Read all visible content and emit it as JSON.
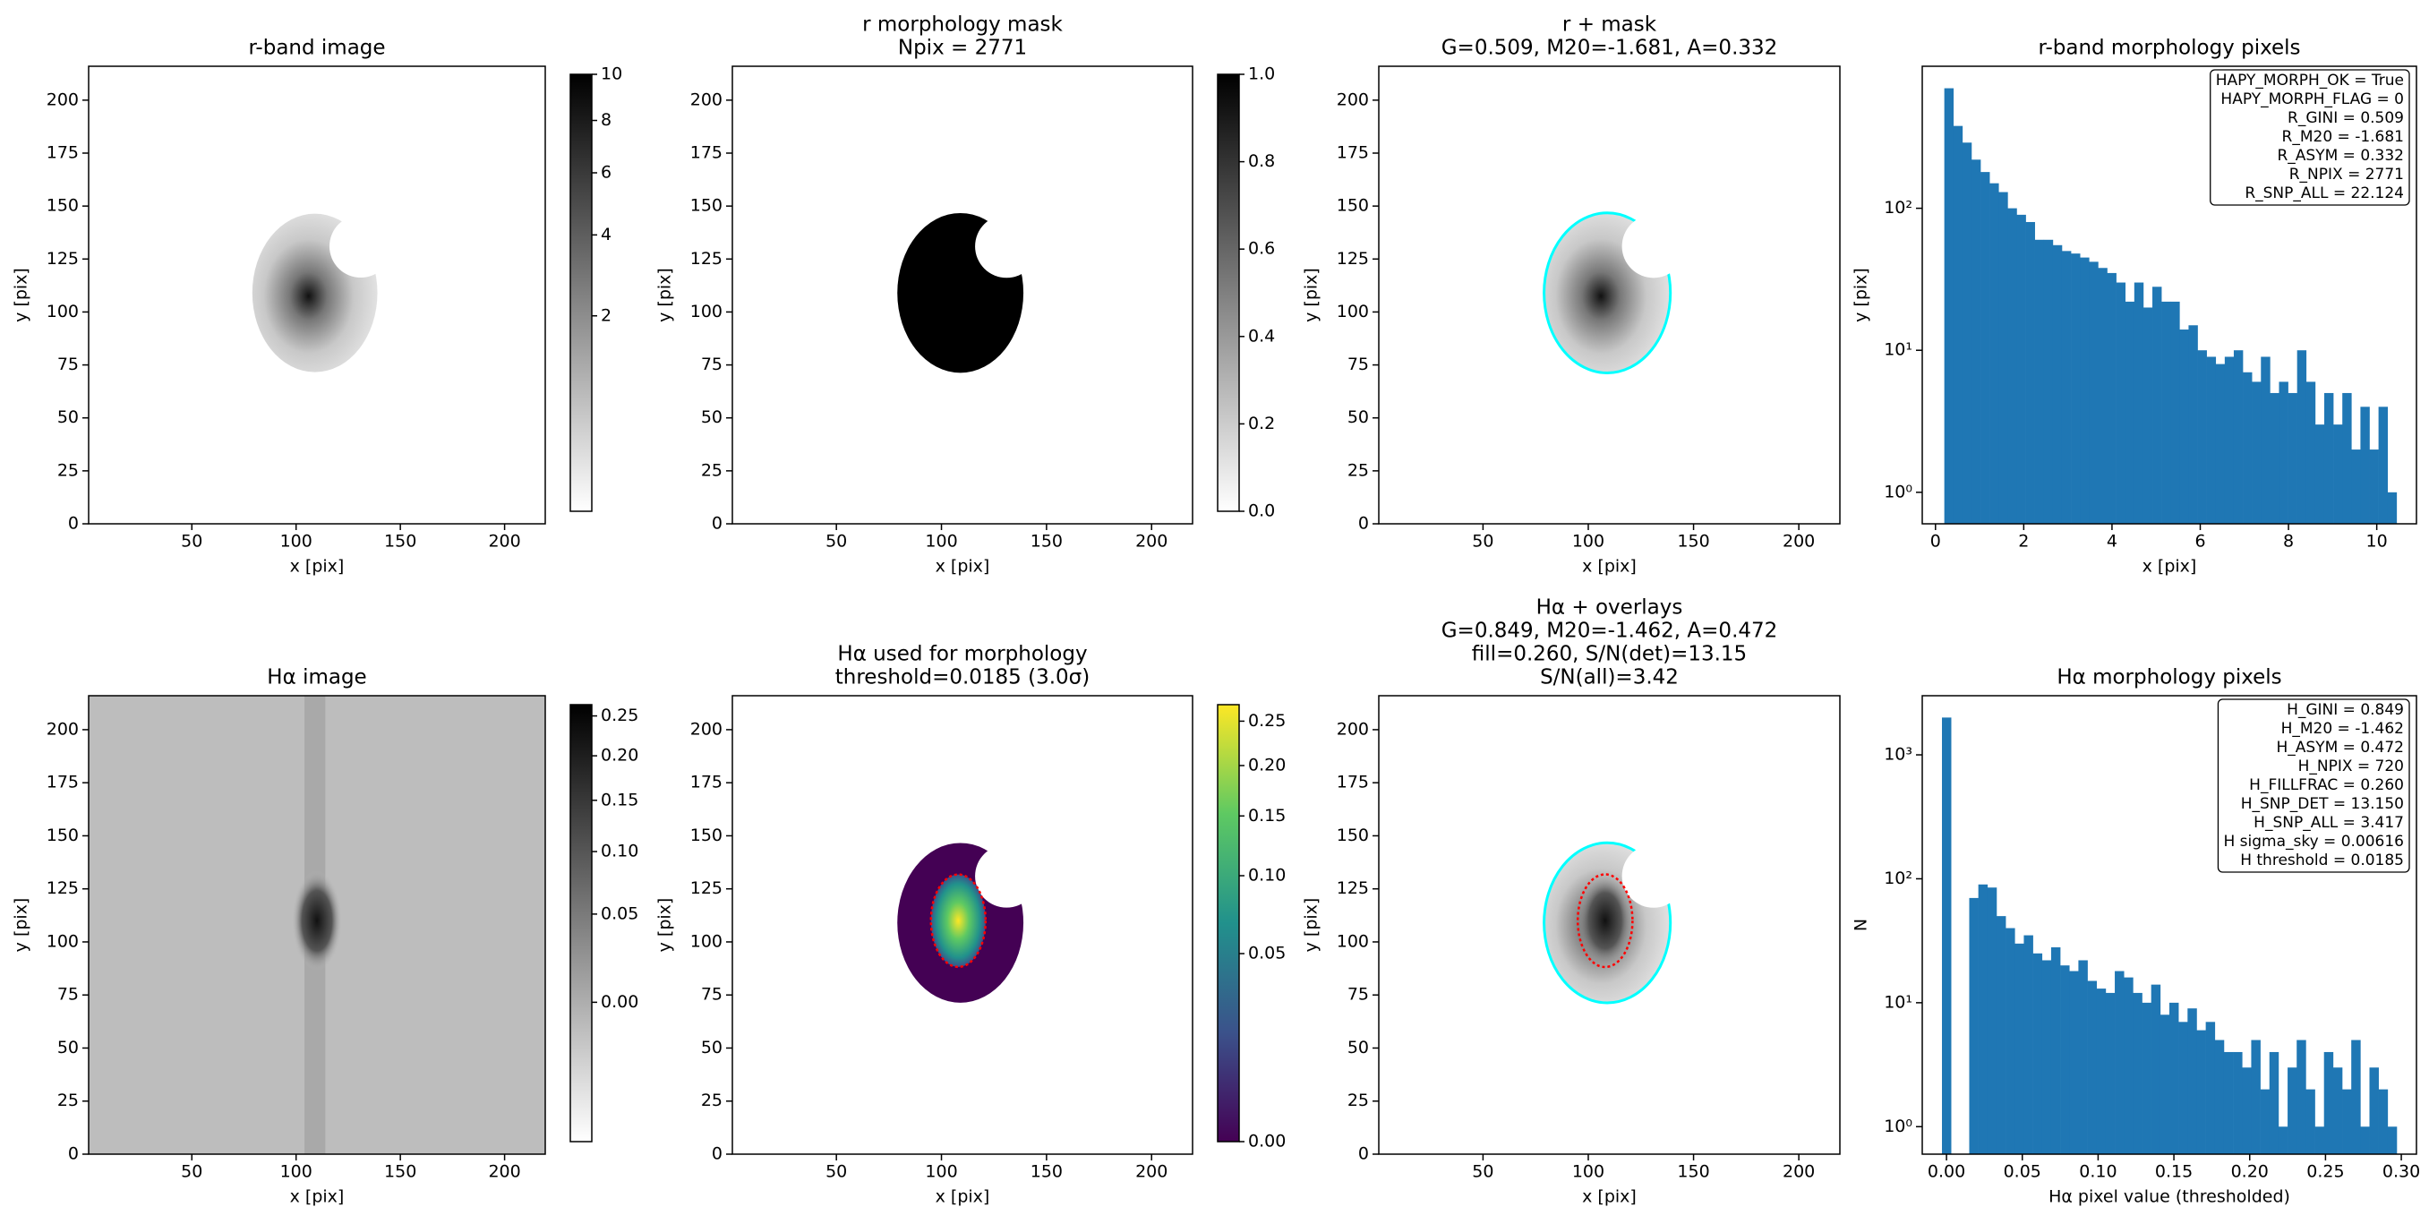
{
  "chart_data": [
    {
      "type": "image",
      "title": [
        "r-band image"
      ],
      "xlabel": "x [pix]",
      "ylabel": "y [pix]",
      "xlim": [
        0.5,
        219.5
      ],
      "ylim": [
        0,
        216
      ],
      "xticks": [
        50,
        100,
        150,
        200
      ],
      "yticks": [
        0,
        25,
        50,
        75,
        100,
        125,
        150,
        175,
        200
      ],
      "cmap": "gray_r",
      "colorbar": {
        "lim": [
          0,
          10
        ],
        "scale": "sqrt",
        "ticks": [
          2,
          4,
          6,
          8,
          10
        ]
      }
    },
    {
      "type": "image",
      "title": [
        "r morphology mask",
        "Npix = 2771"
      ],
      "xlabel": "x [pix]",
      "ylabel": "y [pix]",
      "xlim": [
        0.5,
        219.5
      ],
      "ylim": [
        0,
        216
      ],
      "xticks": [
        50,
        100,
        150,
        200
      ],
      "yticks": [
        0,
        25,
        50,
        75,
        100,
        125,
        150,
        175,
        200
      ],
      "cmap": "gray_r",
      "colorbar": {
        "lim": [
          0,
          1
        ],
        "scale": "linear",
        "ticks": [
          {
            "value": 0,
            "label": "0.0"
          },
          0.2,
          0.4,
          0.6,
          0.8,
          {
            "value": 1,
            "label": "1.0"
          }
        ]
      }
    },
    {
      "type": "image",
      "title": [
        "r + mask",
        "G=0.509, M20=-1.681, A=0.332"
      ],
      "xlabel": "x [pix]",
      "ylabel": "y [pix]",
      "xlim": [
        0.5,
        219.5
      ],
      "ylim": [
        0,
        216
      ],
      "xticks": [
        50,
        100,
        150,
        200
      ],
      "yticks": [
        0,
        25,
        50,
        75,
        100,
        125,
        150,
        175,
        200
      ],
      "cmap": "gray_r"
    },
    {
      "type": "histogram",
      "title": [
        "r-band morphology pixels"
      ],
      "xlabel": "x [pix]",
      "ylabel": "y [pix]",
      "log_y": true,
      "color": "#1f77b4",
      "xlim": [
        -0.3,
        10.9
      ],
      "ylim": [
        0.6,
        1000
      ],
      "xticks": [
        0,
        2,
        4,
        6,
        8,
        10
      ],
      "yticks": [
        {
          "value": 1,
          "label": "10⁰"
        },
        {
          "value": 10,
          "label": "10¹"
        },
        {
          "value": 100,
          "label": "10²"
        }
      ],
      "bins": [
        0.2,
        0.405,
        0.61,
        0.815,
        1.02,
        1.225,
        1.43,
        1.635,
        1.84,
        2.045,
        2.25,
        2.455,
        2.66,
        2.865,
        3.07,
        3.275,
        3.48,
        3.685,
        3.89,
        4.095,
        4.3,
        4.505,
        4.71,
        4.915,
        5.12,
        5.325,
        5.53,
        5.735,
        5.94,
        6.145,
        6.35,
        6.555,
        6.76,
        6.965,
        7.17,
        7.375,
        7.58,
        7.785,
        7.99,
        8.195,
        8.4,
        8.605,
        8.81,
        9.015,
        9.22,
        9.425,
        9.63,
        9.835,
        10.04,
        10.245,
        10.45
      ],
      "counts": [
        700,
        380,
        290,
        220,
        180,
        150,
        130,
        100,
        90,
        80,
        60,
        60,
        55,
        50,
        48,
        45,
        42,
        38,
        35,
        30,
        22,
        30,
        20,
        28,
        22,
        22,
        14,
        15,
        10,
        9,
        8,
        9,
        10,
        7,
        6,
        9,
        5,
        6,
        5,
        10,
        6,
        3,
        5,
        3,
        5,
        2,
        4,
        2,
        4,
        1
      ],
      "annotation": [
        "HAPY_MORPH_OK = True",
        "HAPY_MORPH_FLAG = 0",
        "R_GINI = 0.509",
        "R_M20 = -1.681",
        "R_ASYM = 0.332",
        "R_NPIX = 2771",
        "R_SNP_ALL = 22.124"
      ]
    },
    {
      "type": "image",
      "title": [
        "Hα image"
      ],
      "xlabel": "x [pix]",
      "ylabel": "y [pix]",
      "xlim": [
        0.5,
        219.5
      ],
      "ylim": [
        0,
        216
      ],
      "xticks": [
        50,
        100,
        150,
        200
      ],
      "yticks": [
        0,
        25,
        50,
        75,
        100,
        125,
        150,
        175,
        200
      ],
      "cmap": "gray_r",
      "colorbar": {
        "lim": [
          -0.03,
          0.265
        ],
        "scale": "sqrt",
        "ticks": [
          {
            "value": 0,
            "label": "0.00"
          },
          0.05,
          {
            "value": 0.1,
            "label": "0.10"
          },
          0.15,
          {
            "value": 0.2,
            "label": "0.20"
          },
          0.25
        ]
      }
    },
    {
      "type": "image",
      "title": [
        "Hα used for morphology",
        "threshold=0.0185 (3.0σ)"
      ],
      "xlabel": "x [pix]",
      "ylabel": "y [pix]",
      "xlim": [
        0.5,
        219.5
      ],
      "ylim": [
        0,
        216
      ],
      "xticks": [
        50,
        100,
        150,
        200
      ],
      "yticks": [
        0,
        25,
        50,
        75,
        100,
        125,
        150,
        175,
        200
      ],
      "cmap": "viridis",
      "colorbar": {
        "lim": [
          0,
          0.27
        ],
        "scale": "sqrt",
        "ticks": [
          {
            "value": 0,
            "label": "0.00"
          },
          0.05,
          {
            "value": 0.1,
            "label": "0.10"
          },
          0.15,
          {
            "value": 0.2,
            "label": "0.20"
          },
          0.25
        ]
      }
    },
    {
      "type": "image",
      "title": [
        "Hα + overlays",
        "G=0.849, M20=-1.462, A=0.472",
        "fill=0.260, S/N(det)=13.15",
        "S/N(all)=3.42"
      ],
      "xlabel": "x [pix]",
      "ylabel": "y [pix]",
      "xlim": [
        0.5,
        219.5
      ],
      "ylim": [
        0,
        216
      ],
      "xticks": [
        50,
        100,
        150,
        200
      ],
      "yticks": [
        0,
        25,
        50,
        75,
        100,
        125,
        150,
        175,
        200
      ],
      "cmap": "gray_r"
    },
    {
      "type": "histogram",
      "title": [
        "Hα morphology pixels"
      ],
      "xlabel": "Hα pixel value (thresholded)",
      "ylabel": "N",
      "log_y": true,
      "color": "#1f77b4",
      "xlim": [
        -0.016,
        0.31
      ],
      "ylim": [
        0.6,
        3000
      ],
      "xticks": [
        {
          "value": 0,
          "label": "0.00"
        },
        0.05,
        {
          "value": 0.1,
          "label": "0.10"
        },
        0.15,
        {
          "value": 0.2,
          "label": "0.20"
        },
        0.25,
        {
          "value": 0.3,
          "label": "0.30"
        }
      ],
      "yticks": [
        {
          "value": 1,
          "label": "10⁰"
        },
        {
          "value": 10,
          "label": "10¹"
        },
        {
          "value": 100,
          "label": "10²"
        },
        {
          "value": 1000,
          "label": "10³"
        }
      ],
      "bins": [
        -0.003,
        0.003,
        0.009,
        0.015,
        0.021,
        0.027,
        0.033,
        0.039,
        0.045,
        0.051,
        0.057,
        0.063,
        0.069,
        0.075,
        0.081,
        0.087,
        0.093,
        0.099,
        0.105,
        0.111,
        0.117,
        0.123,
        0.129,
        0.135,
        0.141,
        0.147,
        0.153,
        0.159,
        0.165,
        0.171,
        0.177,
        0.183,
        0.189,
        0.195,
        0.201,
        0.207,
        0.213,
        0.219,
        0.225,
        0.231,
        0.237,
        0.243,
        0.249,
        0.255,
        0.261,
        0.267,
        0.273,
        0.279,
        0.285,
        0.291,
        0.297
      ],
      "counts": [
        2000,
        0,
        0,
        70,
        90,
        85,
        50,
        40,
        30,
        35,
        25,
        22,
        28,
        20,
        18,
        22,
        15,
        13,
        12,
        18,
        16,
        12,
        10,
        14,
        8,
        10,
        7,
        9,
        6,
        7,
        5,
        4,
        4,
        3,
        5,
        2,
        4,
        1,
        3,
        5,
        2,
        1,
        4,
        3,
        2,
        5,
        1,
        3,
        2,
        1
      ],
      "annotation": [
        "H_GINI = 0.849",
        "H_M20 = -1.462",
        "H_ASYM = 0.472",
        "H_NPIX = 720",
        "H_FILLFRAC = 0.260",
        "H_SNP_DET = 13.150",
        "H_SNP_ALL = 3.417",
        "H sigma_sky = 0.00616",
        "H threshold = 0.0185"
      ]
    }
  ]
}
